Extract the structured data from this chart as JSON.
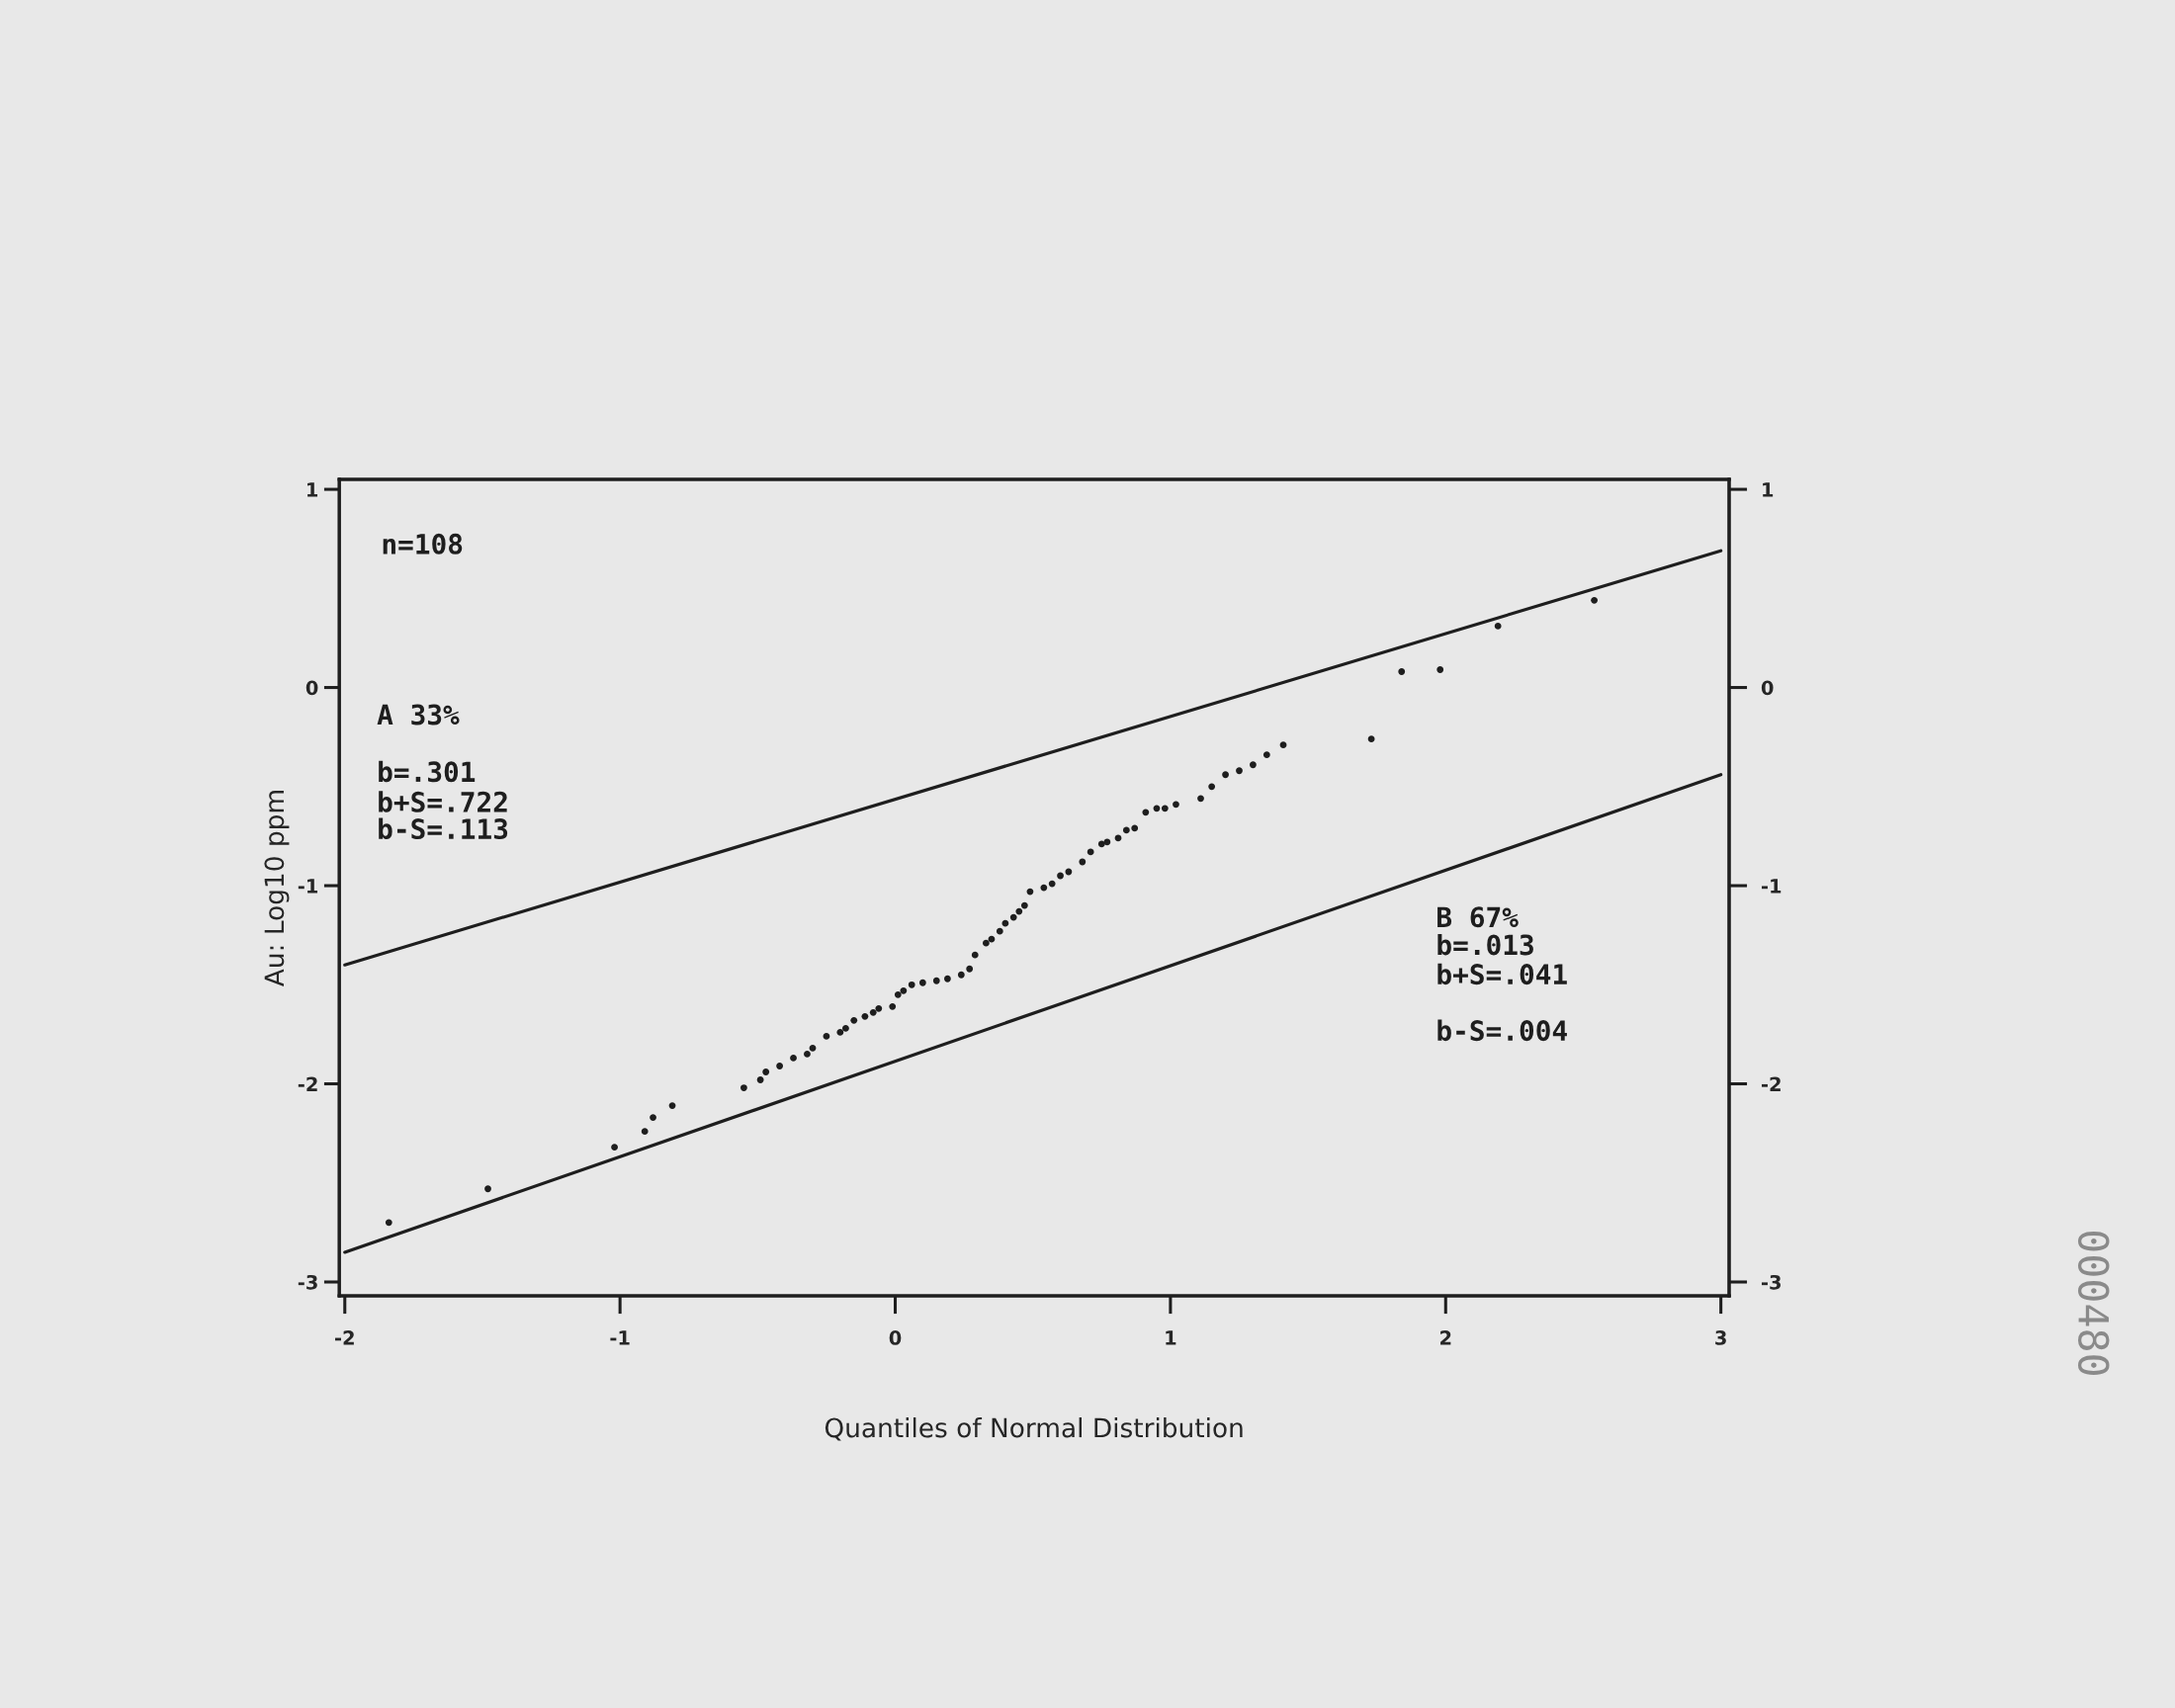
{
  "chart_data": {
    "type": "scatter",
    "xlabel": "Quantiles of Normal Distribution",
    "ylabel": "Au: Log10 ppm",
    "xlim": [
      -2.02,
      3.03
    ],
    "ylim": [
      -3.07,
      1.05
    ],
    "xticks": [
      -2,
      -1,
      0,
      1,
      2,
      3
    ],
    "yticks": [
      -3,
      -2,
      -1,
      0,
      1
    ],
    "y2lim": [
      -3.07,
      1.05
    ],
    "y2ticks": [
      -3,
      -2,
      -1,
      0,
      1
    ],
    "marker": "circle",
    "series": [
      {
        "color": "#1e1e1e",
        "x": [
          -1.84,
          -1.48,
          -1.02,
          -0.91,
          -0.88,
          -0.81,
          -0.55,
          -0.49,
          -0.47,
          -0.42,
          -0.37,
          -0.32,
          -0.3,
          -0.25,
          -0.2,
          -0.18,
          -0.15,
          -0.11,
          -0.08,
          -0.06,
          -0.01,
          0.01,
          0.03,
          0.06,
          0.1,
          0.15,
          0.19,
          0.24,
          0.27,
          0.29,
          0.33,
          0.35,
          0.38,
          0.4,
          0.43,
          0.45,
          0.47,
          0.49,
          0.54,
          0.57,
          0.6,
          0.63,
          0.68,
          0.71,
          0.75,
          0.77,
          0.81,
          0.84,
          0.87,
          0.91,
          0.95,
          0.98,
          1.02,
          1.11,
          1.15,
          1.2,
          1.25,
          1.3,
          1.35,
          1.41,
          1.73,
          1.84,
          1.98,
          2.19,
          2.54
        ],
        "values": [
          -2.7,
          -2.53,
          -2.32,
          -2.24,
          -2.17,
          -2.11,
          -2.02,
          -1.98,
          -1.94,
          -1.91,
          -1.87,
          -1.85,
          -1.82,
          -1.76,
          -1.74,
          -1.72,
          -1.68,
          -1.66,
          -1.64,
          -1.62,
          -1.61,
          -1.55,
          -1.53,
          -1.5,
          -1.49,
          -1.48,
          -1.47,
          -1.45,
          -1.42,
          -1.35,
          -1.29,
          -1.27,
          -1.23,
          -1.19,
          -1.16,
          -1.13,
          -1.1,
          -1.03,
          -1.01,
          -0.99,
          -0.95,
          -0.93,
          -0.88,
          -0.83,
          -0.79,
          -0.78,
          -0.76,
          -0.72,
          -0.71,
          -0.63,
          -0.61,
          -0.61,
          -0.59,
          -0.56,
          -0.5,
          -0.44,
          -0.42,
          -0.39,
          -0.34,
          -0.29,
          -0.26,
          0.08,
          0.09,
          0.31,
          0.44
        ]
      },
      {
        "type": "line",
        "color": "#1e1e1e",
        "line_style": "solid",
        "marker": "none",
        "x": [
          -2,
          3
        ],
        "values": [
          -1.4,
          0.69
        ]
      },
      {
        "type": "line",
        "color": "#1e1e1e",
        "line_style": "solid",
        "marker": "none",
        "x": [
          -2,
          3
        ],
        "values": [
          -2.85,
          -0.44
        ]
      }
    ],
    "annotations": [
      "n=108",
      "A 33%",
      "b=.301",
      "b+S=.722",
      "b-S=.113",
      "B 67%",
      "b=.013",
      "b+S=.041",
      "b-S=.004",
      "000480"
    ]
  }
}
